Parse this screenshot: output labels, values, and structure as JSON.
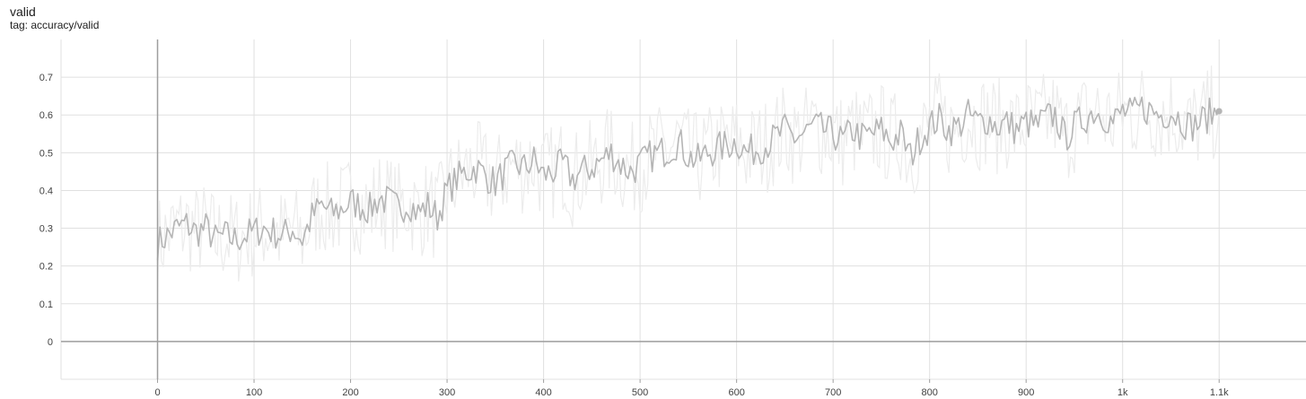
{
  "card": {
    "title": "valid",
    "tag": "tag: accuracy/valid"
  },
  "colors": {
    "smoothed_line": "#b5b5b5",
    "raw_line": "#ececec",
    "grid": "#e0e0e0",
    "zero_axis": "#9e9e9e",
    "tick_text": "#424242"
  },
  "chart_data": {
    "type": "line",
    "title": "valid",
    "subtitle": "tag: accuracy/valid",
    "xlabel": "",
    "ylabel": "",
    "xlim": [
      -100,
      1190
    ],
    "ylim": [
      -0.1,
      0.8
    ],
    "x_ticks": [
      {
        "value": 0,
        "label": "0"
      },
      {
        "value": 100,
        "label": "100"
      },
      {
        "value": 200,
        "label": "200"
      },
      {
        "value": 300,
        "label": "300"
      },
      {
        "value": 400,
        "label": "400"
      },
      {
        "value": 500,
        "label": "500"
      },
      {
        "value": 600,
        "label": "600"
      },
      {
        "value": 700,
        "label": "700"
      },
      {
        "value": 800,
        "label": "800"
      },
      {
        "value": 900,
        "label": "900"
      },
      {
        "value": 1000,
        "label": "1k"
      },
      {
        "value": 1100,
        "label": "1.1k"
      }
    ],
    "y_ticks": [
      {
        "value": 0,
        "label": "0"
      },
      {
        "value": 0.1,
        "label": "0.1"
      },
      {
        "value": 0.2,
        "label": "0.2"
      },
      {
        "value": 0.3,
        "label": "0.3"
      },
      {
        "value": 0.4,
        "label": "0.4"
      },
      {
        "value": 0.5,
        "label": "0.5"
      },
      {
        "value": 0.6,
        "label": "0.6"
      },
      {
        "value": 0.7,
        "label": "0.7"
      }
    ],
    "grid": true,
    "legend": "none",
    "series": [
      {
        "style": "smoothed",
        "x": [
          0,
          10,
          20,
          30,
          40,
          50,
          60,
          70,
          80,
          90,
          100,
          110,
          120,
          130,
          140,
          150,
          160,
          170,
          180,
          190,
          200,
          210,
          220,
          230,
          240,
          250,
          260,
          270,
          280,
          290,
          300,
          310,
          320,
          330,
          340,
          350,
          360,
          370,
          380,
          390,
          400,
          410,
          420,
          430,
          440,
          450,
          460,
          470,
          480,
          490,
          500,
          510,
          520,
          530,
          540,
          550,
          560,
          570,
          580,
          590,
          600,
          610,
          620,
          630,
          640,
          650,
          660,
          670,
          680,
          690,
          700,
          710,
          720,
          730,
          740,
          750,
          760,
          770,
          780,
          790,
          800,
          810,
          820,
          830,
          840,
          850,
          860,
          870,
          880,
          890,
          900,
          910,
          920,
          930,
          940,
          950,
          960,
          970,
          980,
          990,
          1000,
          1010,
          1020,
          1030,
          1040,
          1050,
          1060,
          1070,
          1080,
          1090,
          1100
        ],
        "y": [
          0.26,
          0.28,
          0.3,
          0.31,
          0.29,
          0.3,
          0.27,
          0.28,
          0.27,
          0.28,
          0.29,
          0.3,
          0.29,
          0.28,
          0.3,
          0.27,
          0.33,
          0.36,
          0.34,
          0.35,
          0.37,
          0.36,
          0.35,
          0.38,
          0.37,
          0.35,
          0.37,
          0.34,
          0.36,
          0.33,
          0.4,
          0.43,
          0.45,
          0.46,
          0.44,
          0.42,
          0.45,
          0.47,
          0.46,
          0.48,
          0.44,
          0.45,
          0.47,
          0.43,
          0.45,
          0.46,
          0.48,
          0.5,
          0.47,
          0.45,
          0.47,
          0.49,
          0.5,
          0.51,
          0.53,
          0.49,
          0.48,
          0.5,
          0.51,
          0.52,
          0.53,
          0.5,
          0.51,
          0.52,
          0.54,
          0.56,
          0.54,
          0.55,
          0.57,
          0.56,
          0.55,
          0.53,
          0.56,
          0.54,
          0.55,
          0.56,
          0.53,
          0.55,
          0.49,
          0.54,
          0.57,
          0.59,
          0.56,
          0.57,
          0.6,
          0.58,
          0.59,
          0.57,
          0.58,
          0.56,
          0.58,
          0.57,
          0.59,
          0.6,
          0.54,
          0.57,
          0.59,
          0.61,
          0.6,
          0.58,
          0.61,
          0.6,
          0.62,
          0.61,
          0.6,
          0.61,
          0.59,
          0.57,
          0.58,
          0.6,
          0.61
        ]
      }
    ]
  }
}
